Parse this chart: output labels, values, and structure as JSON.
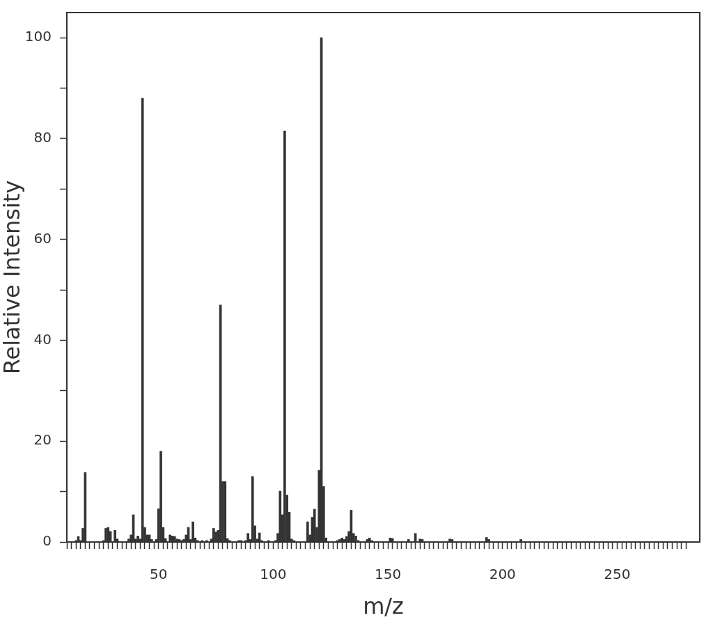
{
  "chart_data": {
    "type": "bar",
    "xlabel": "m/z",
    "ylabel": "Relative Intensity",
    "color": "#333333",
    "grid": false,
    "legend": false,
    "x": [
      14,
      15,
      16,
      17,
      18,
      26,
      27,
      28,
      29,
      31,
      32,
      37,
      38,
      39,
      40,
      41,
      42,
      43,
      44,
      45,
      46,
      47,
      49,
      50,
      51,
      52,
      53,
      55,
      56,
      57,
      58,
      59,
      60,
      61,
      62,
      63,
      64,
      65,
      66,
      67,
      69,
      71,
      73,
      74,
      75,
      76,
      77,
      78,
      79,
      80,
      81,
      85,
      86,
      88,
      89,
      90,
      91,
      92,
      93,
      94,
      95,
      98,
      101,
      102,
      103,
      104,
      105,
      106,
      107,
      108,
      109,
      115,
      116,
      117,
      118,
      119,
      120,
      121,
      122,
      123,
      128,
      129,
      130,
      131,
      132,
      133,
      134,
      135,
      136,
      137,
      141,
      142,
      143,
      151,
      152,
      159,
      162,
      164,
      165,
      177,
      178,
      193,
      194,
      208
    ],
    "values": [
      0.3,
      1.1,
      0.3,
      2.7,
      13.8,
      0.3,
      2.7,
      2.9,
      2.1,
      2.3,
      0.6,
      0.6,
      1.4,
      5.4,
      0.6,
      1.2,
      0.6,
      88,
      2.9,
      1.4,
      1.4,
      0.5,
      0.5,
      6.6,
      18,
      2.9,
      0.7,
      1.4,
      1.2,
      1.1,
      0.6,
      0.5,
      0.3,
      0.5,
      1.4,
      2.9,
      0.5,
      4,
      0.8,
      0.3,
      0.3,
      0.3,
      0.6,
      2.7,
      2,
      2.3,
      47,
      12,
      12,
      0.7,
      0.3,
      0.3,
      0.3,
      0.3,
      1.7,
      0.5,
      13,
      3.2,
      0.6,
      1.8,
      0.3,
      0.3,
      0.3,
      1.7,
      10.1,
      5.4,
      81.5,
      9.3,
      5.9,
      0.6,
      0.3,
      4,
      1.4,
      4.9,
      6.5,
      2.9,
      14.2,
      100,
      11,
      0.8,
      0.3,
      0.5,
      0.8,
      0.5,
      1.1,
      2.1,
      6.3,
      1.7,
      1.2,
      0.3,
      0.5,
      0.8,
      0.3,
      0.8,
      0.7,
      0.5,
      1.7,
      0.6,
      0.5,
      0.6,
      0.5,
      0.9,
      0.5,
      0.5
    ],
    "xlim": [
      10,
      286
    ],
    "ylim": [
      0,
      105
    ],
    "xticks": [
      {
        "value": 10,
        "label": null
      },
      {
        "value": 12,
        "label": null
      },
      {
        "value": 14,
        "label": null
      },
      {
        "value": 16,
        "label": null
      },
      {
        "value": 18,
        "label": null
      },
      {
        "value": 20,
        "label": null
      },
      {
        "value": 22,
        "label": null
      },
      {
        "value": 24,
        "label": null
      },
      {
        "value": 26,
        "label": null
      },
      {
        "value": 28,
        "label": null
      },
      {
        "value": 30,
        "label": null
      },
      {
        "value": 32,
        "label": null
      },
      {
        "value": 34,
        "label": null
      },
      {
        "value": 36,
        "label": null
      },
      {
        "value": 38,
        "label": null
      },
      {
        "value": 40,
        "label": null
      },
      {
        "value": 42,
        "label": null
      },
      {
        "value": 44,
        "label": null
      },
      {
        "value": 46,
        "label": null
      },
      {
        "value": 48,
        "label": null
      },
      50,
      {
        "value": 52,
        "label": null
      },
      {
        "value": 54,
        "label": null
      },
      {
        "value": 56,
        "label": null
      },
      {
        "value": 58,
        "label": null
      },
      {
        "value": 60,
        "label": null
      },
      {
        "value": 62,
        "label": null
      },
      {
        "value": 64,
        "label": null
      },
      {
        "value": 66,
        "label": null
      },
      {
        "value": 68,
        "label": null
      },
      {
        "value": 70,
        "label": null
      },
      {
        "value": 72,
        "label": null
      },
      {
        "value": 74,
        "label": null
      },
      {
        "value": 76,
        "label": null
      },
      {
        "value": 78,
        "label": null
      },
      {
        "value": 80,
        "label": null
      },
      {
        "value": 82,
        "label": null
      },
      {
        "value": 84,
        "label": null
      },
      {
        "value": 86,
        "label": null
      },
      {
        "value": 88,
        "label": null
      },
      {
        "value": 90,
        "label": null
      },
      {
        "value": 92,
        "label": null
      },
      {
        "value": 94,
        "label": null
      },
      {
        "value": 96,
        "label": null
      },
      {
        "value": 98,
        "label": null
      },
      100,
      {
        "value": 102,
        "label": null
      },
      {
        "value": 104,
        "label": null
      },
      {
        "value": 106,
        "label": null
      },
      {
        "value": 108,
        "label": null
      },
      {
        "value": 110,
        "label": null
      },
      {
        "value": 112,
        "label": null
      },
      {
        "value": 114,
        "label": null
      },
      {
        "value": 116,
        "label": null
      },
      {
        "value": 118,
        "label": null
      },
      {
        "value": 120,
        "label": null
      },
      {
        "value": 122,
        "label": null
      },
      {
        "value": 124,
        "label": null
      },
      {
        "value": 126,
        "label": null
      },
      {
        "value": 128,
        "label": null
      },
      {
        "value": 130,
        "label": null
      },
      {
        "value": 132,
        "label": null
      },
      {
        "value": 134,
        "label": null
      },
      {
        "value": 136,
        "label": null
      },
      {
        "value": 138,
        "label": null
      },
      {
        "value": 140,
        "label": null
      },
      {
        "value": 142,
        "label": null
      },
      {
        "value": 144,
        "label": null
      },
      {
        "value": 146,
        "label": null
      },
      {
        "value": 148,
        "label": null
      },
      150,
      {
        "value": 152,
        "label": null
      },
      {
        "value": 154,
        "label": null
      },
      {
        "value": 156,
        "label": null
      },
      {
        "value": 158,
        "label": null
      },
      {
        "value": 160,
        "label": null
      },
      {
        "value": 162,
        "label": null
      },
      {
        "value": 164,
        "label": null
      },
      {
        "value": 166,
        "label": null
      },
      {
        "value": 168,
        "label": null
      },
      {
        "value": 170,
        "label": null
      },
      {
        "value": 172,
        "label": null
      },
      {
        "value": 174,
        "label": null
      },
      {
        "value": 176,
        "label": null
      },
      {
        "value": 178,
        "label": null
      },
      {
        "value": 180,
        "label": null
      },
      {
        "value": 182,
        "label": null
      },
      {
        "value": 184,
        "label": null
      },
      {
        "value": 186,
        "label": null
      },
      {
        "value": 188,
        "label": null
      },
      {
        "value": 190,
        "label": null
      },
      {
        "value": 192,
        "label": null
      },
      {
        "value": 194,
        "label": null
      },
      {
        "value": 196,
        "label": null
      },
      {
        "value": 198,
        "label": null
      },
      200,
      {
        "value": 202,
        "label": null
      },
      {
        "value": 204,
        "label": null
      },
      {
        "value": 206,
        "label": null
      },
      {
        "value": 208,
        "label": null
      },
      {
        "value": 210,
        "label": null
      },
      {
        "value": 212,
        "label": null
      },
      {
        "value": 214,
        "label": null
      },
      {
        "value": 216,
        "label": null
      },
      {
        "value": 218,
        "label": null
      },
      {
        "value": 220,
        "label": null
      },
      {
        "value": 222,
        "label": null
      },
      {
        "value": 224,
        "label": null
      },
      {
        "value": 226,
        "label": null
      },
      {
        "value": 228,
        "label": null
      },
      {
        "value": 230,
        "label": null
      },
      {
        "value": 232,
        "label": null
      },
      {
        "value": 234,
        "label": null
      },
      {
        "value": 236,
        "label": null
      },
      {
        "value": 238,
        "label": null
      },
      {
        "value": 240,
        "label": null
      },
      {
        "value": 242,
        "label": null
      },
      {
        "value": 244,
        "label": null
      },
      {
        "value": 246,
        "label": null
      },
      {
        "value": 248,
        "label": null
      },
      250,
      {
        "value": 252,
        "label": null
      },
      {
        "value": 254,
        "label": null
      },
      {
        "value": 256,
        "label": null
      },
      {
        "value": 258,
        "label": null
      },
      {
        "value": 260,
        "label": null
      },
      {
        "value": 262,
        "label": null
      },
      {
        "value": 264,
        "label": null
      },
      {
        "value": 266,
        "label": null
      },
      {
        "value": 268,
        "label": null
      },
      {
        "value": 270,
        "label": null
      },
      {
        "value": 272,
        "label": null
      },
      {
        "value": 274,
        "label": null
      },
      {
        "value": 276,
        "label": null
      },
      {
        "value": 278,
        "label": null
      },
      {
        "value": 280,
        "label": null
      }
    ],
    "yticks": [
      0,
      {
        "value": 10,
        "label": null
      },
      20,
      {
        "value": 30,
        "label": null
      },
      40,
      {
        "value": 50,
        "label": null
      },
      60,
      {
        "value": 70,
        "label": null
      },
      80,
      {
        "value": 90,
        "label": null
      },
      100
    ]
  }
}
